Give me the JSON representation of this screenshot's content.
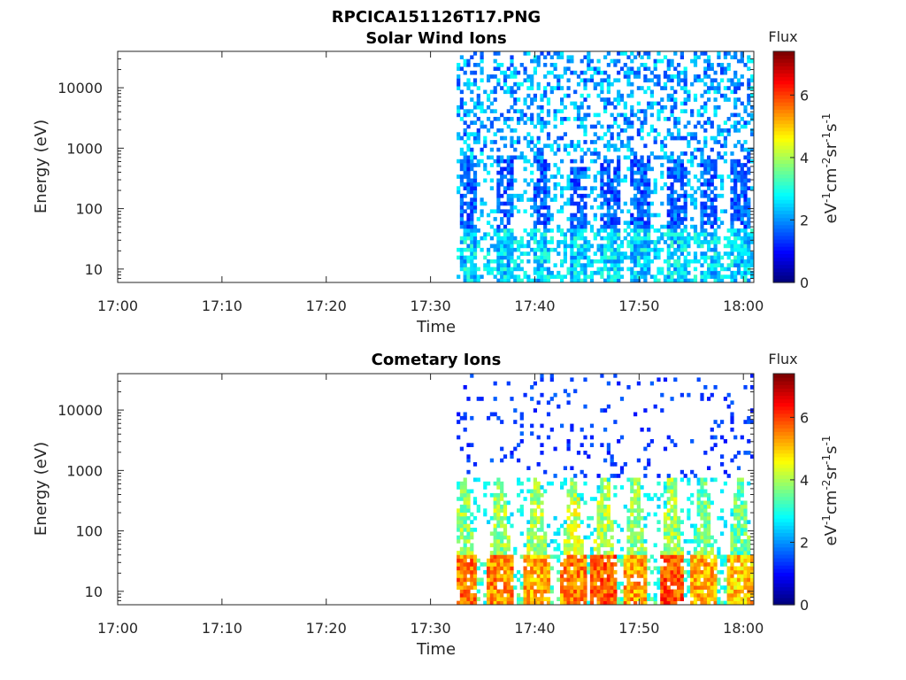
{
  "figure": {
    "title": "RPCICA151126T17.PNG"
  },
  "chart_data": [
    {
      "type": "heatmap",
      "title": "Solar Wind Ions",
      "xlabel": "Time",
      "ylabel": "Energy (eV)",
      "x_ticks": [
        "17:00",
        "17:10",
        "17:20",
        "17:30",
        "17:40",
        "17:50",
        "18:00"
      ],
      "x_range": [
        "17:00",
        "18:01"
      ],
      "y_scale": "log",
      "y_ticks": [
        "10",
        "100",
        "1000",
        "10000"
      ],
      "y_range": [
        6,
        40000
      ],
      "data_start": "17:32:30",
      "colorbar": {
        "label": "Flux",
        "units": "eV-1cm-2sr-1s-1",
        "range": [
          0,
          7.4
        ],
        "ticks": [
          "0",
          "2",
          "4",
          "6"
        ],
        "colormap": "jet"
      },
      "bursts": [
        {
          "time": "17:33:30",
          "low_energy_level": 2.5,
          "mid_energy_level": 1.0,
          "high_energy_level": 1.3
        },
        {
          "time": "17:37:00",
          "low_energy_level": 2.5,
          "mid_energy_level": 1.0,
          "high_energy_level": 1.3
        },
        {
          "time": "17:40:30",
          "low_energy_level": 2.5,
          "mid_energy_level": 1.0,
          "high_energy_level": 1.3
        },
        {
          "time": "17:44:00",
          "low_energy_level": 2.5,
          "mid_energy_level": 1.0,
          "high_energy_level": 1.3
        },
        {
          "time": "17:47:00",
          "low_energy_level": 2.5,
          "mid_energy_level": 1.0,
          "high_energy_level": 1.3
        },
        {
          "time": "17:50:00",
          "low_energy_level": 2.5,
          "mid_energy_level": 1.0,
          "high_energy_level": 1.3
        },
        {
          "time": "17:53:30",
          "low_energy_level": 2.5,
          "mid_energy_level": 1.0,
          "high_energy_level": 1.3
        },
        {
          "time": "17:56:30",
          "low_energy_level": 2.5,
          "mid_energy_level": 1.0,
          "high_energy_level": 1.3
        },
        {
          "time": "17:59:30",
          "low_energy_level": 2.5,
          "mid_energy_level": 1.0,
          "high_energy_level": 1.3
        }
      ]
    },
    {
      "type": "heatmap",
      "title": "Cometary Ions",
      "xlabel": "Time",
      "ylabel": "Energy (eV)",
      "x_ticks": [
        "17:00",
        "17:10",
        "17:20",
        "17:30",
        "17:40",
        "17:50",
        "18:00"
      ],
      "x_range": [
        "17:00",
        "18:01"
      ],
      "y_scale": "log",
      "y_ticks": [
        "10",
        "100",
        "1000",
        "10000"
      ],
      "y_range": [
        6,
        40000
      ],
      "data_start": "17:32:30",
      "colorbar": {
        "label": "Flux",
        "units": "eV-1cm-2sr-1s-1",
        "range": [
          0,
          7.4
        ],
        "ticks": [
          "0",
          "2",
          "4",
          "6"
        ],
        "colormap": "jet"
      },
      "bursts": [
        {
          "time": "17:33:00",
          "low_energy_level": 5.6,
          "mid_energy_level": 3.8,
          "high_energy_level": 1.0
        },
        {
          "time": "17:36:30",
          "low_energy_level": 5.5,
          "mid_energy_level": 3.9,
          "high_energy_level": 1.0
        },
        {
          "time": "17:40:00",
          "low_energy_level": 5.2,
          "mid_energy_level": 4.0,
          "high_energy_level": 1.0
        },
        {
          "time": "17:43:30",
          "low_energy_level": 5.5,
          "mid_energy_level": 4.2,
          "high_energy_level": 1.0
        },
        {
          "time": "17:46:30",
          "low_energy_level": 5.8,
          "mid_energy_level": 4.0,
          "high_energy_level": 1.0
        },
        {
          "time": "17:49:30",
          "low_energy_level": 5.3,
          "mid_energy_level": 3.8,
          "high_energy_level": 1.0
        },
        {
          "time": "17:53:00",
          "low_energy_level": 5.9,
          "mid_energy_level": 3.9,
          "high_energy_level": 1.0
        },
        {
          "time": "17:56:00",
          "low_energy_level": 5.2,
          "mid_energy_level": 3.6,
          "high_energy_level": 1.0
        },
        {
          "time": "17:59:30",
          "low_energy_level": 5.0,
          "mid_energy_level": 3.5,
          "high_energy_level": 1.0
        }
      ]
    }
  ]
}
